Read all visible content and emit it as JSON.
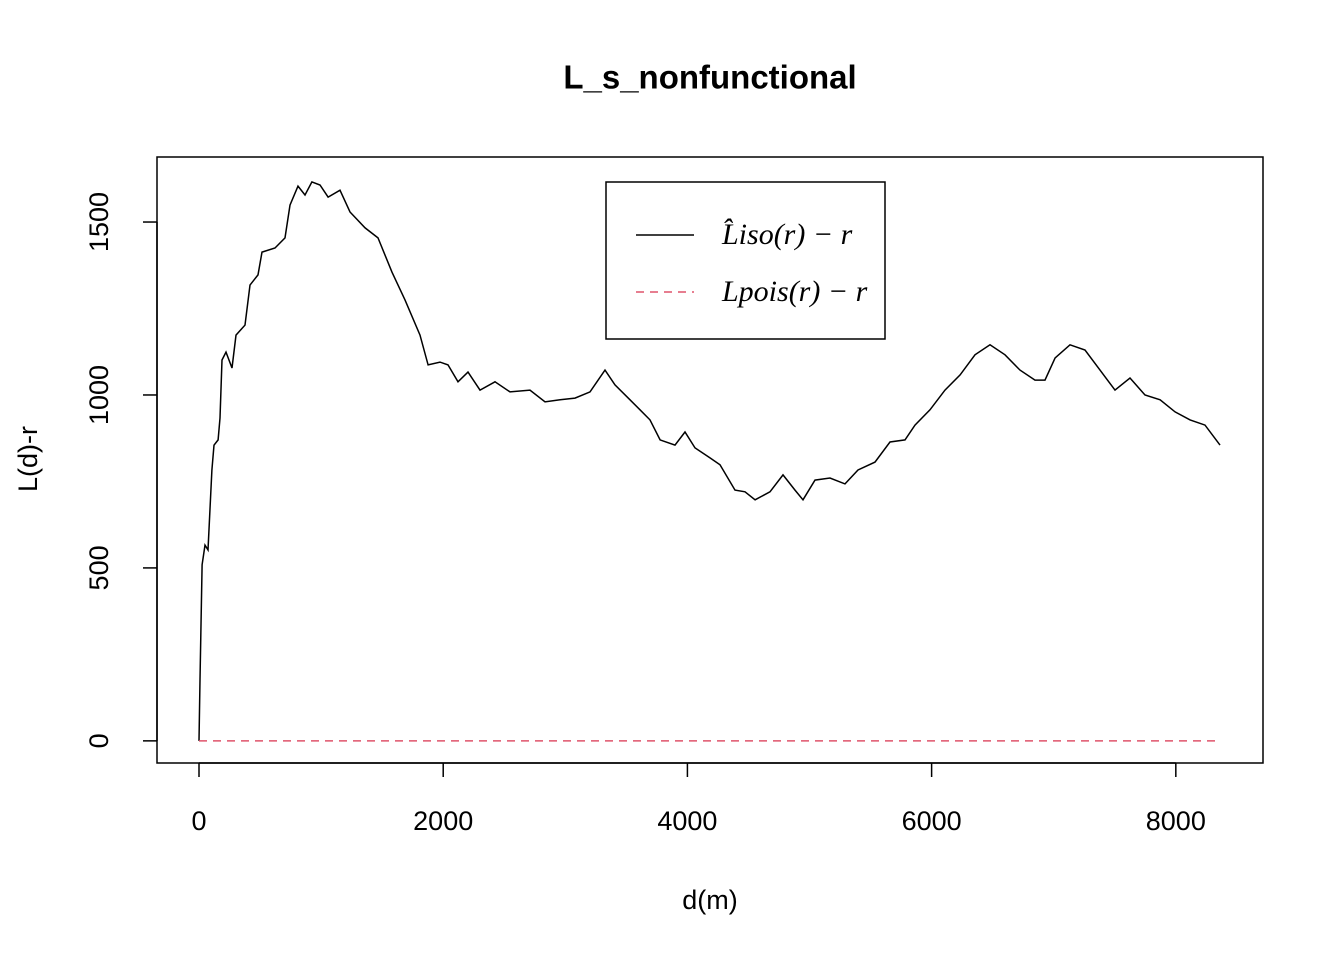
{
  "chart_data": {
    "type": "line",
    "title": "L_s_nonfunctional",
    "xlabel": "d(m)",
    "ylabel": "L(d)-r",
    "xlim": [
      -344,
      8714
    ],
    "ylim": [
      -64,
      1688
    ],
    "xticks": [
      0,
      2000,
      4000,
      6000,
      8000
    ],
    "yticks": [
      0,
      500,
      1000,
      1500
    ],
    "legend": "top-center",
    "series": [
      {
        "name": "L̂iso(r) − r",
        "color": "#000000",
        "dash": "solid",
        "x": [
          0,
          8,
          25,
          49,
          74,
          106,
          123,
          156,
          172,
          188,
          221,
          270,
          303,
          377,
          418,
          483,
          516,
          622,
          704,
          745,
          811,
          868,
          925,
          991,
          1057,
          1155,
          1237,
          1360,
          1466,
          1581,
          1687,
          1810,
          1876,
          1974,
          2039,
          2121,
          2203,
          2301,
          2424,
          2547,
          2711,
          2834,
          2957,
          3079,
          3202,
          3325,
          3407,
          3530,
          3612,
          3694,
          3776,
          3898,
          3980,
          4062,
          4185,
          4267,
          4390,
          4472,
          4554,
          4676,
          4783,
          4881,
          4947,
          5045,
          5168,
          5291,
          5397,
          5536,
          5659,
          5782,
          5864,
          5987,
          6110,
          6233,
          6355,
          6478,
          6601,
          6724,
          6847,
          6929,
          7011,
          7133,
          7256,
          7379,
          7502,
          7625,
          7748,
          7871,
          7994,
          8117,
          8239,
          8362
        ],
        "values": [
          0,
          176,
          509,
          566,
          552,
          783,
          855,
          870,
          933,
          1101,
          1124,
          1078,
          1173,
          1202,
          1318,
          1347,
          1413,
          1425,
          1454,
          1549,
          1604,
          1578,
          1616,
          1607,
          1572,
          1592,
          1529,
          1483,
          1454,
          1355,
          1275,
          1173,
          1087,
          1095,
          1087,
          1038,
          1066,
          1014,
          1038,
          1009,
          1014,
          980,
          986,
          991,
          1009,
          1072,
          1029,
          986,
          957,
          928,
          870,
          855,
          893,
          847,
          818,
          798,
          725,
          720,
          697,
          720,
          769,
          725,
          697,
          754,
          760,
          743,
          783,
          806,
          864,
          870,
          913,
          957,
          1014,
          1058,
          1116,
          1145,
          1116,
          1072,
          1043,
          1043,
          1107,
          1145,
          1130,
          1072,
          1014,
          1049,
          1000,
          986,
          951,
          928,
          913,
          855
        ]
      },
      {
        "name": "Lpois(r) − r",
        "color": "#df536b",
        "dash": "dashed",
        "x": [
          0,
          8321
        ],
        "values": [
          0,
          0
        ]
      }
    ]
  }
}
